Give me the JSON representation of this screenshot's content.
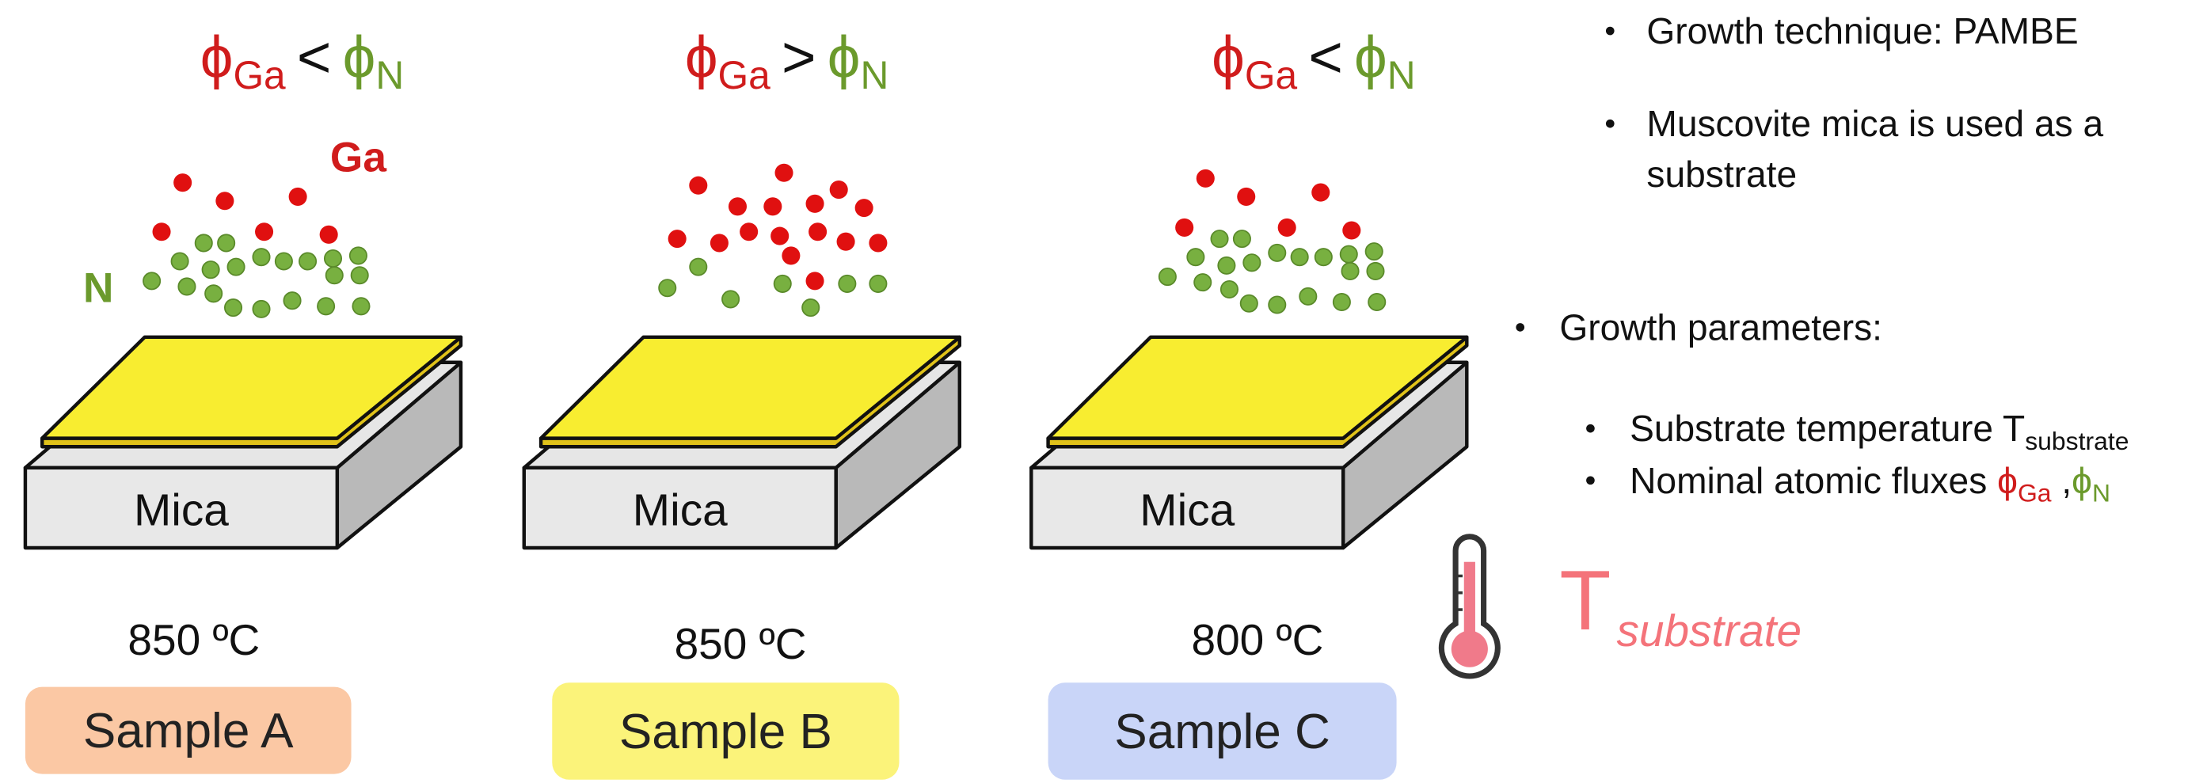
{
  "samples": [
    {
      "flux": {
        "ga_symbol": "ϕ",
        "ga_sub": "Ga",
        "relation": "<",
        "n_symbol": "ϕ",
        "n_sub": "N"
      },
      "substrate": "Mica",
      "temperature": "850 ºC",
      "name": "Sample A"
    },
    {
      "flux": {
        "ga_symbol": "ϕ",
        "ga_sub": "Ga",
        "relation": ">",
        "n_symbol": "ϕ",
        "n_sub": "N"
      },
      "substrate": "Mica",
      "temperature": "850 ºC",
      "name": "Sample B"
    },
    {
      "flux": {
        "ga_symbol": "ϕ",
        "ga_sub": "Ga",
        "relation": "<",
        "n_symbol": "ϕ",
        "n_sub": "N"
      },
      "substrate": "Mica",
      "temperature": "800 ºC",
      "name": "Sample C"
    }
  ],
  "species": {
    "ga": "Ga",
    "n": "N"
  },
  "notes": {
    "technique": "Growth technique: PAMBE",
    "substrate_line1": "Muscovite mica is used as a",
    "substrate_line2": "substrate",
    "parameters": "Growth parameters:",
    "temperature": {
      "text": "Substrate temperature T",
      "sub": "substrate"
    },
    "fluxes": {
      "text": "Nominal atomic fluxes ",
      "ga_symbol": "ϕ",
      "ga_sub": "Ga",
      "separator": " ,",
      "n_symbol": "ϕ",
      "n_sub": "N"
    }
  },
  "thermometer": {
    "symbol": "T",
    "sub": "substrate"
  }
}
